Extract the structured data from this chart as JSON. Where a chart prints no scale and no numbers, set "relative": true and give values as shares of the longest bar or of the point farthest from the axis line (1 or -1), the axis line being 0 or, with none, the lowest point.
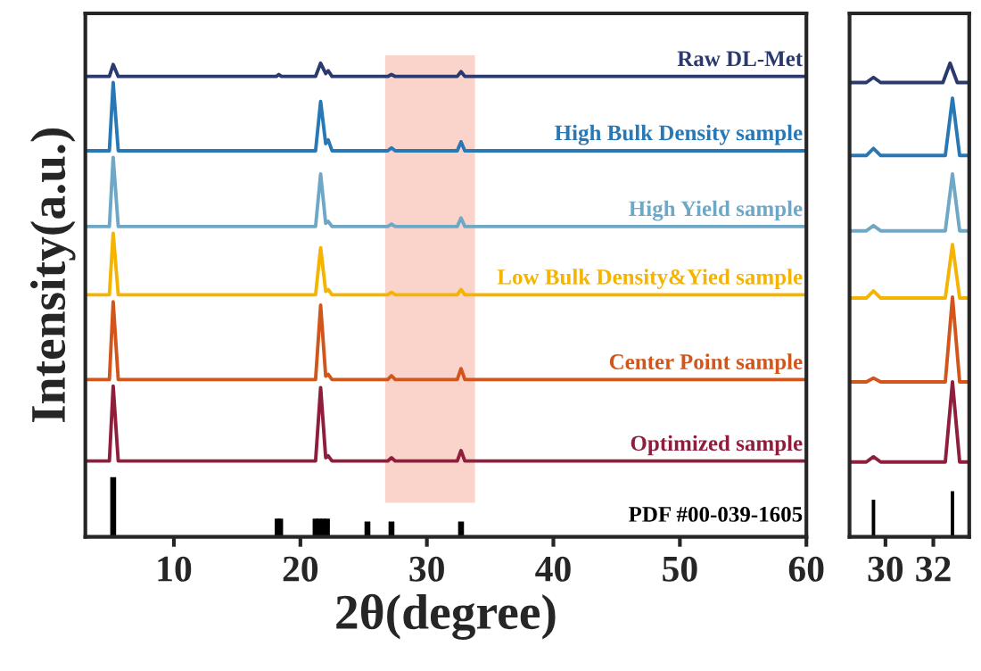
{
  "chart_data": [
    {
      "type": "line",
      "relative": true,
      "xlabel": "2θ(degree)",
      "ylabel": "Intensity(a.u.)",
      "xlim": [
        3,
        60
      ],
      "xticks": [
        10,
        20,
        30,
        40,
        50,
        60
      ],
      "tick_labels": "x",
      "grid": false,
      "legend": false,
      "bands": [
        {
          "axis": "x",
          "from": 26.7,
          "to": 33.8,
          "color": "#f9c9bd"
        }
      ],
      "series": [
        {
          "name": "Raw DL-Met",
          "color": "#2b3a6e",
          "x": [
            3,
            4.9,
            5.2,
            5.6,
            18.1,
            18.3,
            18.5,
            21.2,
            21.6,
            22.0,
            22.2,
            22.5,
            26.9,
            27.2,
            27.5,
            32.4,
            32.7,
            33.0,
            60
          ],
          "values": [
            0.972,
            0.972,
            0.997,
            0.972,
            0.972,
            0.976,
            0.972,
            0.972,
            1.0,
            0.978,
            0.984,
            0.972,
            0.972,
            0.976,
            0.972,
            0.972,
            0.982,
            0.972,
            0.972
          ]
        },
        {
          "name": "High Bulk Density sample",
          "color": "#2878b5",
          "x": [
            3,
            4.9,
            5.2,
            5.6,
            21.2,
            21.6,
            22.0,
            22.2,
            22.5,
            26.9,
            27.2,
            27.5,
            32.4,
            32.7,
            33.0,
            60
          ],
          "values": [
            0.815,
            0.815,
            0.959,
            0.815,
            0.815,
            0.919,
            0.83,
            0.838,
            0.815,
            0.815,
            0.821,
            0.815,
            0.815,
            0.834,
            0.815,
            0.815
          ]
        },
        {
          "name": "High Yield sample",
          "color": "#6fa8c6",
          "x": [
            3,
            4.9,
            5.2,
            5.6,
            21.2,
            21.6,
            22.0,
            22.2,
            22.5,
            26.9,
            27.2,
            27.5,
            32.4,
            32.7,
            33.0,
            60
          ],
          "values": [
            0.655,
            0.655,
            0.801,
            0.655,
            0.655,
            0.766,
            0.662,
            0.666,
            0.655,
            0.655,
            0.66,
            0.655,
            0.655,
            0.673,
            0.655,
            0.655
          ]
        },
        {
          "name": "Low Bulk Density&Yied sample",
          "color": "#f5b400",
          "x": [
            3,
            4.9,
            5.2,
            5.6,
            21.2,
            21.6,
            22.0,
            22.2,
            22.5,
            26.9,
            27.2,
            27.5,
            32.4,
            32.7,
            33.0,
            60
          ],
          "values": [
            0.511,
            0.511,
            0.641,
            0.511,
            0.511,
            0.61,
            0.518,
            0.522,
            0.511,
            0.511,
            0.516,
            0.511,
            0.511,
            0.522,
            0.511,
            0.511
          ]
        },
        {
          "name": "Center Point sample",
          "color": "#d2561c",
          "x": [
            3,
            4.9,
            5.2,
            5.6,
            21.2,
            21.6,
            22.0,
            22.2,
            22.5,
            26.9,
            27.2,
            27.5,
            32.4,
            32.7,
            33.0,
            60
          ],
          "values": [
            0.332,
            0.332,
            0.496,
            0.332,
            0.332,
            0.489,
            0.339,
            0.343,
            0.332,
            0.332,
            0.34,
            0.332,
            0.332,
            0.355,
            0.332,
            0.332
          ]
        },
        {
          "name": "Optimized sample",
          "color": "#8e1e3c",
          "x": [
            3,
            4.9,
            5.2,
            5.6,
            21.2,
            21.6,
            22.0,
            22.2,
            22.5,
            26.9,
            27.2,
            27.5,
            32.4,
            32.7,
            33.0,
            60
          ],
          "values": [
            0.16,
            0.16,
            0.318,
            0.16,
            0.16,
            0.315,
            0.167,
            0.171,
            0.16,
            0.16,
            0.167,
            0.16,
            0.16,
            0.182,
            0.16,
            0.16
          ]
        },
        {
          "name": "PDF #00-039-1605",
          "type": "bar",
          "color": "#000000",
          "x": [
            5.2,
            18.2,
            18.4,
            21.2,
            21.5,
            21.8,
            22.1,
            25.3,
            27.2,
            32.7
          ],
          "values": [
            0.123,
            0.035,
            0.035,
            0.035,
            0.035,
            0.035,
            0.035,
            0.029,
            0.029,
            0.029
          ]
        }
      ]
    },
    {
      "type": "line",
      "relative": true,
      "xlim": [
        28.5,
        33.5
      ],
      "xticks": [
        30,
        32
      ],
      "tick_labels": "x",
      "grid": false,
      "legend": false,
      "series": [
        {
          "color": "#2b3a6e",
          "x": [
            28.5,
            29.2,
            29.5,
            29.8,
            32.4,
            32.7,
            33.0,
            33.5
          ],
          "values": [
            0.959,
            0.959,
            0.97,
            0.959,
            0.959,
            1.0,
            0.959,
            0.959
          ]
        },
        {
          "color": "#2878b5",
          "x": [
            28.5,
            29.2,
            29.5,
            29.8,
            32.5,
            32.8,
            33.1,
            33.5
          ],
          "values": [
            0.805,
            0.805,
            0.82,
            0.805,
            0.805,
            0.926,
            0.805,
            0.805
          ]
        },
        {
          "color": "#6fa8c6",
          "x": [
            28.5,
            29.2,
            29.5,
            29.8,
            32.5,
            32.8,
            33.1,
            33.5
          ],
          "values": [
            0.646,
            0.646,
            0.657,
            0.646,
            0.646,
            0.766,
            0.646,
            0.646
          ]
        },
        {
          "color": "#f5b400",
          "x": [
            28.5,
            29.2,
            29.5,
            29.8,
            32.5,
            32.8,
            33.1,
            33.5
          ],
          "values": [
            0.504,
            0.504,
            0.519,
            0.504,
            0.504,
            0.617,
            0.504,
            0.504
          ]
        },
        {
          "color": "#d2561c",
          "x": [
            28.5,
            29.2,
            29.5,
            29.8,
            32.5,
            32.8,
            33.1,
            33.5
          ],
          "values": [
            0.327,
            0.327,
            0.335,
            0.327,
            0.327,
            0.506,
            0.327,
            0.327
          ]
        },
        {
          "color": "#8e1e3c",
          "x": [
            28.5,
            29.2,
            29.5,
            29.8,
            32.5,
            32.8,
            33.1,
            33.5
          ],
          "values": [
            0.158,
            0.158,
            0.169,
            0.158,
            0.158,
            0.327,
            0.158,
            0.158
          ]
        },
        {
          "type": "bar",
          "color": "#000000",
          "x": [
            29.5,
            32.8
          ],
          "values": [
            0.075,
            0.093
          ]
        }
      ]
    }
  ]
}
